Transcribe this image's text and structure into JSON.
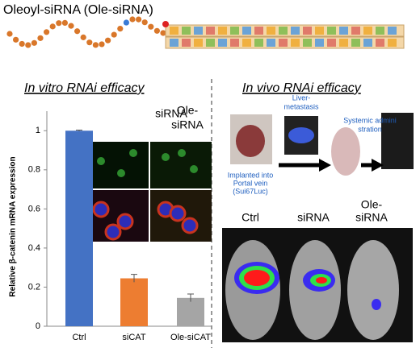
{
  "title": "Oleoyl-siRNA (Ole-siRNA)",
  "in_vitro": {
    "heading": "In vitro RNAi efficacy",
    "image_labels": [
      [
        "siRNA"
      ],
      [
        "Ole-",
        "siRNA"
      ]
    ]
  },
  "chart_data": {
    "type": "bar",
    "ylabel": "Relative β-catenin mRNA expression",
    "categories": [
      "Ctrl",
      "siCAT",
      "Ole-siCAT"
    ],
    "values": [
      1.0,
      0.245,
      0.145
    ],
    "errors": [
      0.003,
      0.02,
      0.02
    ],
    "colors": [
      "#4472c4",
      "#ed7d31",
      "#a5a5a5"
    ],
    "ylim": [
      0,
      1.1
    ],
    "yticks": [
      0,
      0.2,
      0.4,
      0.6,
      0.8,
      1
    ]
  },
  "in_vivo": {
    "heading": "In vivo RNAi efficacy",
    "steps": [
      [
        "Implanted into",
        "Portal vein",
        "(Sui67Luc)"
      ],
      [
        "Liver-",
        "metastasis"
      ],
      [
        "Systemic admini",
        "stration"
      ]
    ],
    "groups": [
      [
        "Ctrl"
      ],
      [
        "siRNA"
      ],
      [
        "Ole-",
        "siRNA"
      ]
    ]
  }
}
